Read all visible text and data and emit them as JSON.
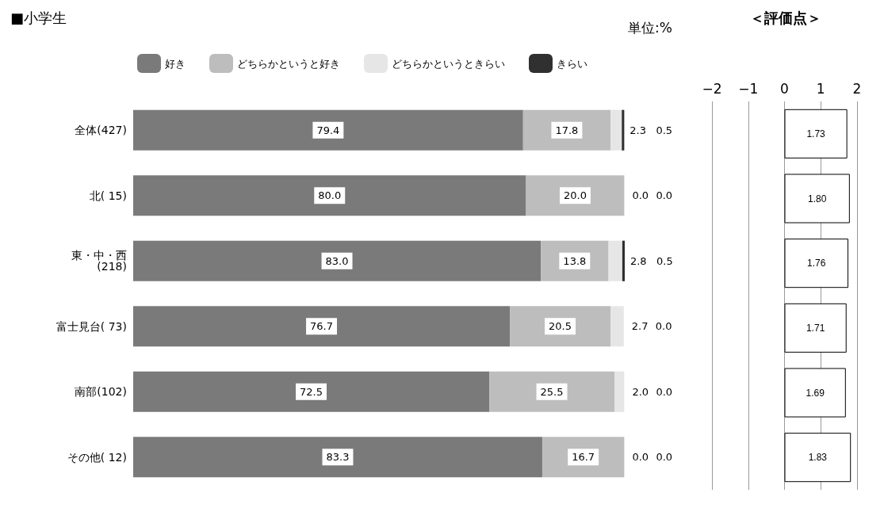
{
  "chart_data": [
    {
      "type": "bar",
      "title": "■小学生",
      "annotations": [
        "単位:%"
      ],
      "orientation": "horizontal",
      "stacked": true,
      "legend": "top",
      "tick_labels": "y",
      "grid": false,
      "categories": [
        "全体(427)",
        "北( 15)",
        "東・中・西\n(218)",
        "富士見台( 73)",
        "南部(102)",
        "その他( 12)"
      ],
      "series": [
        {
          "name": "好き",
          "color": "#7a7a7a",
          "values": [
            79.4,
            80.0,
            83.0,
            76.7,
            72.5,
            83.3
          ],
          "value_labels": [
            "79.4",
            "80.0",
            "83.0",
            "76.7",
            "72.5",
            "83.3"
          ]
        },
        {
          "name": "どちらかというと好き",
          "color": "#bdbdbd",
          "values": [
            17.8,
            20.0,
            13.8,
            20.5,
            25.5,
            16.7
          ],
          "value_labels": [
            "17.8",
            "20.0",
            "13.8",
            "20.5",
            "25.5",
            "16.7"
          ]
        },
        {
          "name": "どちらかというときらい",
          "color": "#e6e6e6",
          "values": [
            2.3,
            0.0,
            2.8,
            2.7,
            2.0,
            0.0
          ],
          "value_labels": [
            "2.3",
            "0.0",
            "2.8",
            "2.7",
            "2.0",
            "0.0"
          ]
        },
        {
          "name": "きらい",
          "color": "#303030",
          "values": [
            0.5,
            0.0,
            0.5,
            0.0,
            0.0,
            0.0
          ],
          "value_labels": [
            "0.5",
            "0.0",
            "0.5",
            "0.0",
            "0.0",
            "0.0"
          ]
        }
      ]
    },
    {
      "type": "bar",
      "title": "＜評価点＞",
      "orientation": "horizontal",
      "tick_labels": "x",
      "grid": "x",
      "xlim": [
        -2,
        2
      ],
      "xticks": [
        -2,
        -1,
        0,
        1,
        2
      ],
      "categories": [
        null,
        null,
        null,
        null,
        null,
        null
      ],
      "series": [
        {
          "color": "#ffffff",
          "values": [
            1.73,
            1.8,
            1.76,
            1.71,
            1.69,
            1.83
          ],
          "value_labels": [
            "1.73",
            "1.80",
            "1.76",
            "1.71",
            "1.69",
            "1.83"
          ]
        }
      ]
    }
  ]
}
